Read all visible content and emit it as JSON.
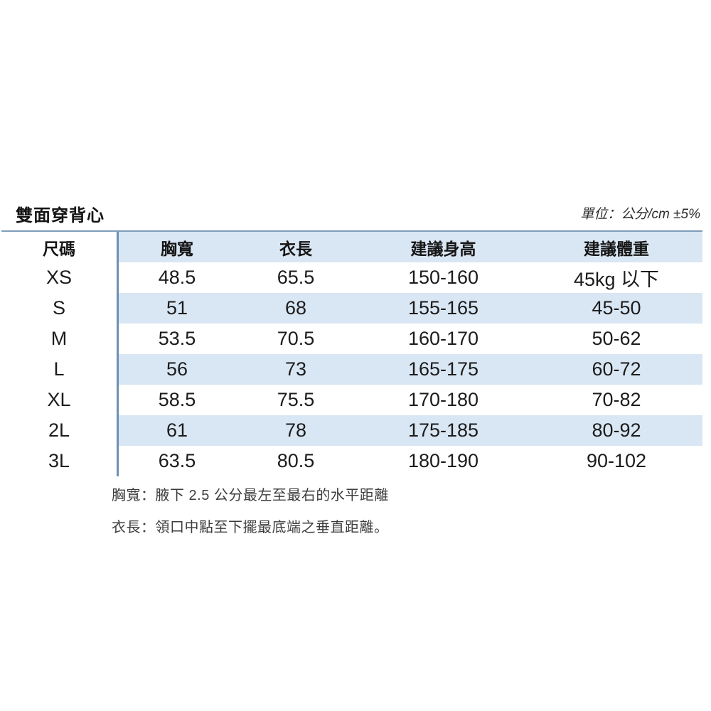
{
  "title": "雙面穿背心",
  "unit_note": "單位：公分/cm  ±5%",
  "table": {
    "headers": [
      "尺碼",
      "胸寬",
      "衣長",
      "建議身高",
      "建議體重"
    ],
    "rows": [
      [
        "XS",
        "48.5",
        "65.5",
        "150-160",
        "45kg 以下"
      ],
      [
        "S",
        "51",
        "68",
        "155-165",
        "45-50"
      ],
      [
        "M",
        "53.5",
        "70.5",
        "160-170",
        "50-62"
      ],
      [
        "L",
        "56",
        "73",
        "165-175",
        "60-72"
      ],
      [
        "XL",
        "58.5",
        "75.5",
        "170-180",
        "70-82"
      ],
      [
        "2L",
        "61",
        "78",
        "175-185",
        "80-92"
      ],
      [
        "3L",
        "63.5",
        "80.5",
        "180-190",
        "90-102"
      ]
    ]
  },
  "notes": [
    "胸寬：腋下 2.5 公分最左至最右的水平距離",
    "衣長：領口中點至下擺最底端之垂直距離。"
  ],
  "colors": {
    "band_blue": "#d9e6f3",
    "divider_blue": "#6a91b3",
    "top_line": "#7e9eba"
  }
}
